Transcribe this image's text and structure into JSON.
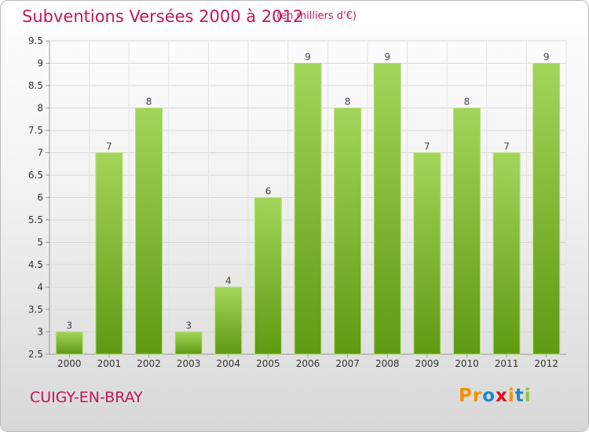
{
  "header": {
    "title": "Subventions Versées 2000 à 2012",
    "subtitle": "(en milliers d'€)"
  },
  "footer": {
    "commune": "CUIGY-EN-BRAY",
    "logo": {
      "text": "Proxiti",
      "letters": [
        "P",
        "r",
        "o",
        "x",
        "i",
        "t",
        "i"
      ],
      "colors": [
        "#f39200",
        "#f39200",
        "#1e88c7",
        "#e30613",
        "#f39200",
        "#1e88c7",
        "#8dc63f"
      ]
    }
  },
  "chart_data": {
    "type": "bar",
    "title": "Subventions Versées 2000 à 2012",
    "categories": [
      "2000",
      "2001",
      "2002",
      "2003",
      "2004",
      "2005",
      "2006",
      "2007",
      "2008",
      "2009",
      "2010",
      "2011",
      "2012"
    ],
    "values": [
      3,
      7,
      8,
      3,
      4,
      6,
      9,
      8,
      9,
      7,
      8,
      7,
      9
    ],
    "data_labels": [
      "3",
      "7",
      "8",
      "3",
      "4",
      "6",
      "9",
      "8",
      "9",
      "7",
      "8",
      "7",
      "9"
    ],
    "ylim": [
      2.5,
      9.5
    ],
    "yticks": [
      "2.5",
      "3",
      "3.5",
      "4",
      "4.5",
      "5",
      "5.5",
      "6",
      "6.5",
      "7",
      "7.5",
      "8",
      "8.5",
      "9",
      "9.5"
    ],
    "xlabel": "",
    "ylabel": "",
    "grid": true,
    "bar_color": "#8cc63f"
  }
}
